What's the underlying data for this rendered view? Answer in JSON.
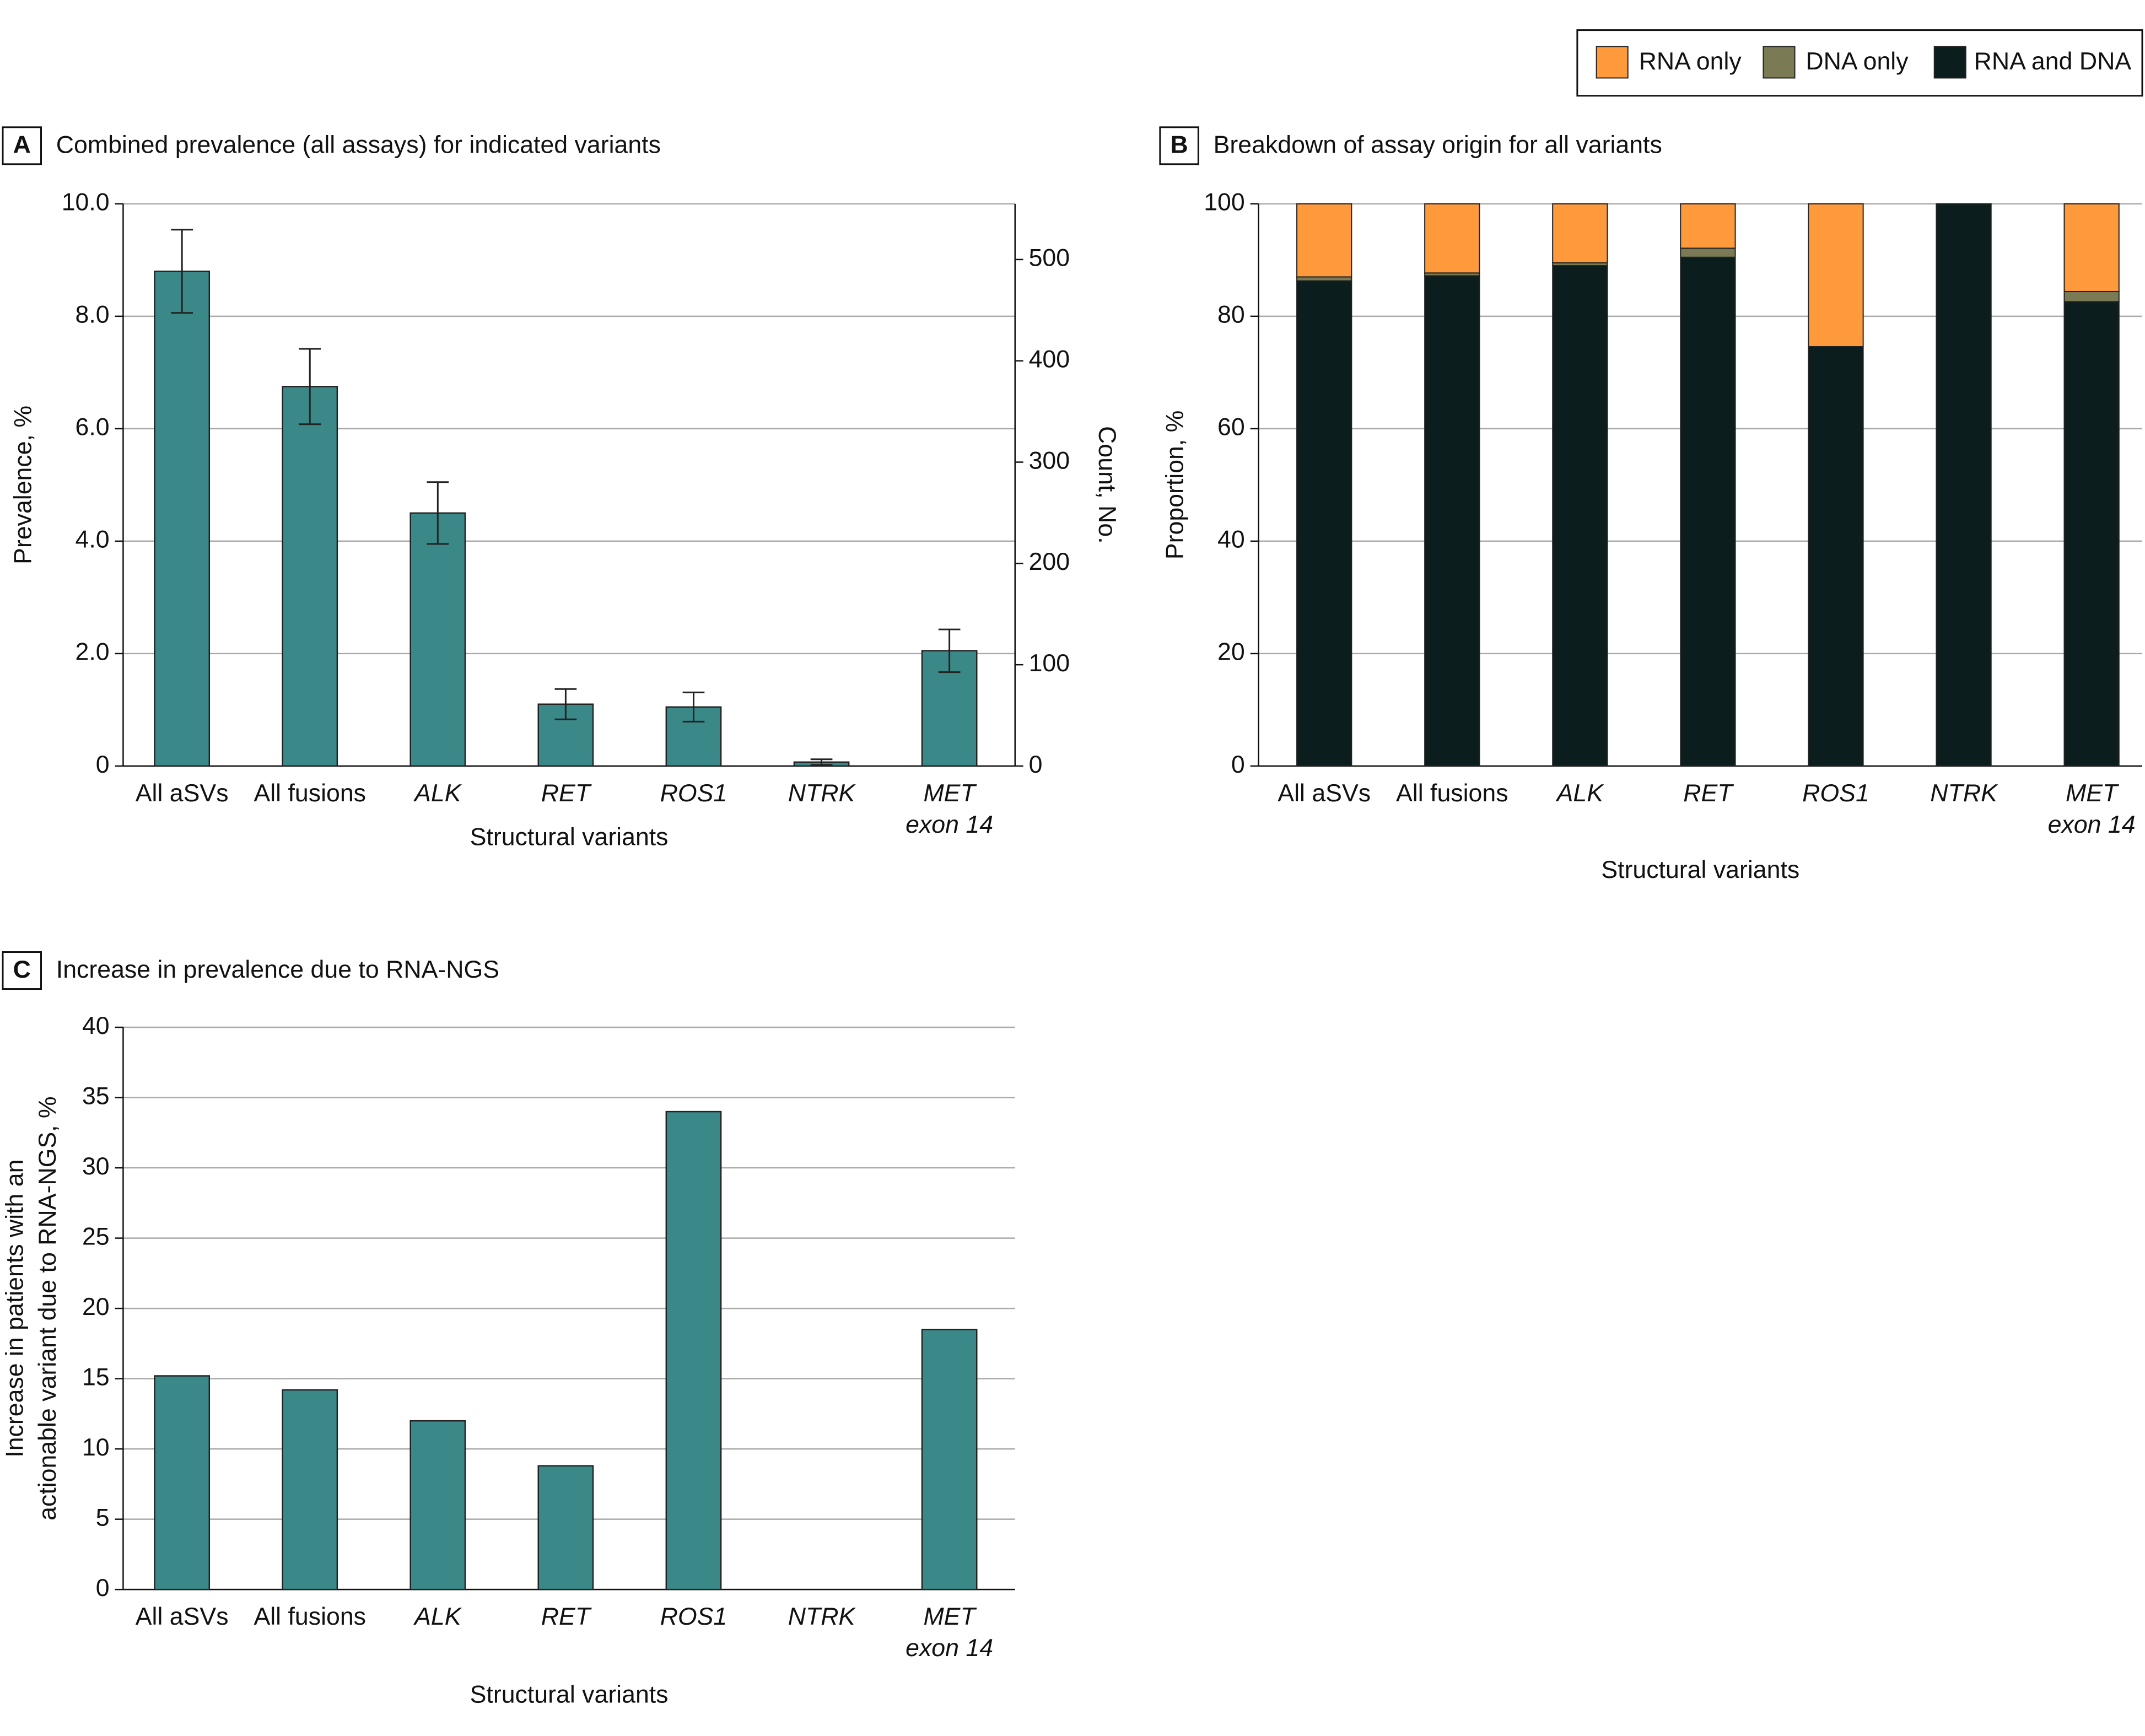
{
  "chart_data": [
    {
      "type": "bar",
      "panel": "A",
      "title": "Combined prevalence (all assays) for indicated variants",
      "categories": [
        "All aSVs",
        "All fusions",
        "ALK",
        "RET",
        "ROS1",
        "NTRK",
        [
          "MET",
          "exon 14"
        ]
      ],
      "italic": [
        false,
        false,
        true,
        true,
        true,
        true,
        true
      ],
      "values": [
        8.8,
        6.75,
        4.5,
        1.1,
        1.05,
        0.07,
        2.05
      ],
      "errors": [
        0.74,
        0.67,
        0.55,
        0.27,
        0.26,
        0.05,
        0.38
      ],
      "color": "#3a8888",
      "ylim": [
        0,
        10
      ],
      "yticks": [
        0,
        {
          "value": 2,
          "label": "2.0"
        },
        {
          "value": 4,
          "label": "4.0"
        },
        {
          "value": 6,
          "label": "6.0"
        },
        {
          "value": 8,
          "label": "8.0"
        },
        {
          "value": 10,
          "label": "10.0"
        }
      ],
      "y2lim": [
        0,
        555
      ],
      "y2ticks": [
        0,
        100,
        200,
        300,
        400,
        500
      ],
      "ylabel": "Prevalence, %",
      "y2label": "Count, No.",
      "xlabel": "Structural variants",
      "grid": true
    },
    {
      "type": "stacked_bar",
      "panel": "B",
      "title": "Breakdown of assay origin for all variants",
      "categories": [
        "All aSVs",
        "All fusions",
        "ALK",
        "RET",
        "ROS1",
        "NTRK",
        [
          "MET",
          "exon 14"
        ]
      ],
      "italic": [
        false,
        false,
        true,
        true,
        true,
        true,
        true
      ],
      "series": [
        {
          "name": "RNA and DNA",
          "color": "#0b1d1c",
          "values": [
            86.3,
            87.2,
            89.0,
            90.5,
            74.6,
            100,
            82.6
          ]
        },
        {
          "name": "DNA only",
          "color": "#7a7a55",
          "values": [
            0.7,
            0.5,
            0.5,
            1.6,
            0,
            0,
            1.8
          ]
        },
        {
          "name": "RNA only",
          "color": "#ff9a3c",
          "values": [
            13.0,
            12.3,
            10.5,
            7.9,
            25.4,
            0,
            15.6
          ]
        }
      ],
      "ylim": [
        0,
        100
      ],
      "yticks": [
        0,
        20,
        40,
        60,
        80,
        100
      ],
      "ylabel": "Proportion, %",
      "xlabel": "Structural variants",
      "grid": true,
      "legend": "top-right"
    },
    {
      "type": "bar",
      "panel": "C",
      "title": "Increase in prevalence due to RNA-NGS",
      "categories": [
        "All aSVs",
        "All fusions",
        "ALK",
        "RET",
        "ROS1",
        "NTRK",
        [
          "MET",
          "exon 14"
        ]
      ],
      "italic": [
        false,
        false,
        true,
        true,
        true,
        true,
        true
      ],
      "values": [
        15.2,
        14.2,
        12.0,
        8.8,
        34.0,
        0,
        18.5
      ],
      "color": "#3a8888",
      "ylim": [
        0,
        40
      ],
      "yticks": [
        0,
        5,
        10,
        15,
        20,
        25,
        30,
        35,
        40
      ],
      "ylabel": [
        "Increase in patients with an",
        "actionable variant due to RNA-NGS, %"
      ],
      "xlabel": "Structural variants",
      "grid": true
    }
  ]
}
